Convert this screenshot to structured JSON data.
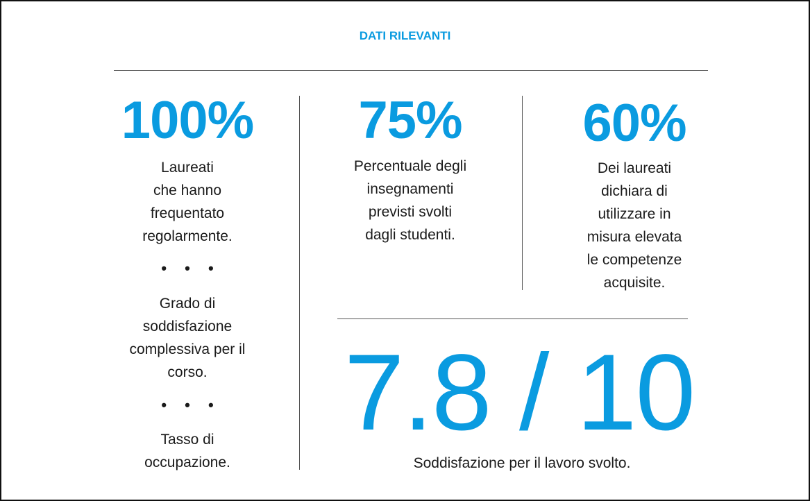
{
  "title": "DATI RILEVANTI",
  "accent_color": "#0a9be0",
  "stats": [
    {
      "value": "100%",
      "lines": [
        "Laureati",
        "che hanno",
        "frequentato",
        "regolarmente."
      ]
    },
    {
      "value": "75%",
      "lines": [
        "Percentuale degli",
        "insegnamenti",
        "previsti svolti",
        "dagli studenti."
      ]
    },
    {
      "value": "60%",
      "lines": [
        "Dei laureati",
        "dichiara di",
        "utilizzare in",
        "misura elevata",
        "le competenze",
        "acquisite."
      ]
    }
  ],
  "extra_items": [
    {
      "lines": [
        "Grado di",
        "soddisfazione",
        "complessiva per il",
        "corso."
      ]
    },
    {
      "lines": [
        "Tasso di",
        "occupazione."
      ]
    }
  ],
  "separator": "• • •",
  "score": {
    "value": "7.8 / 10",
    "caption": "Soddisfazione per il lavoro svolto."
  }
}
